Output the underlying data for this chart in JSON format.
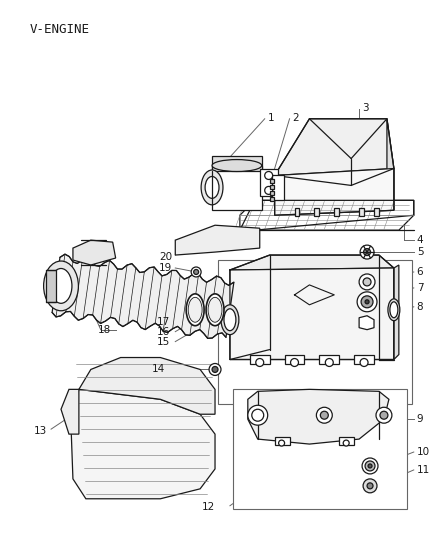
{
  "title": "V-ENGINE",
  "bg": "#ffffff",
  "lc": "#1a1a1a",
  "gc": "#666666",
  "fig_w": 4.38,
  "fig_h": 5.33,
  "dpi": 100
}
